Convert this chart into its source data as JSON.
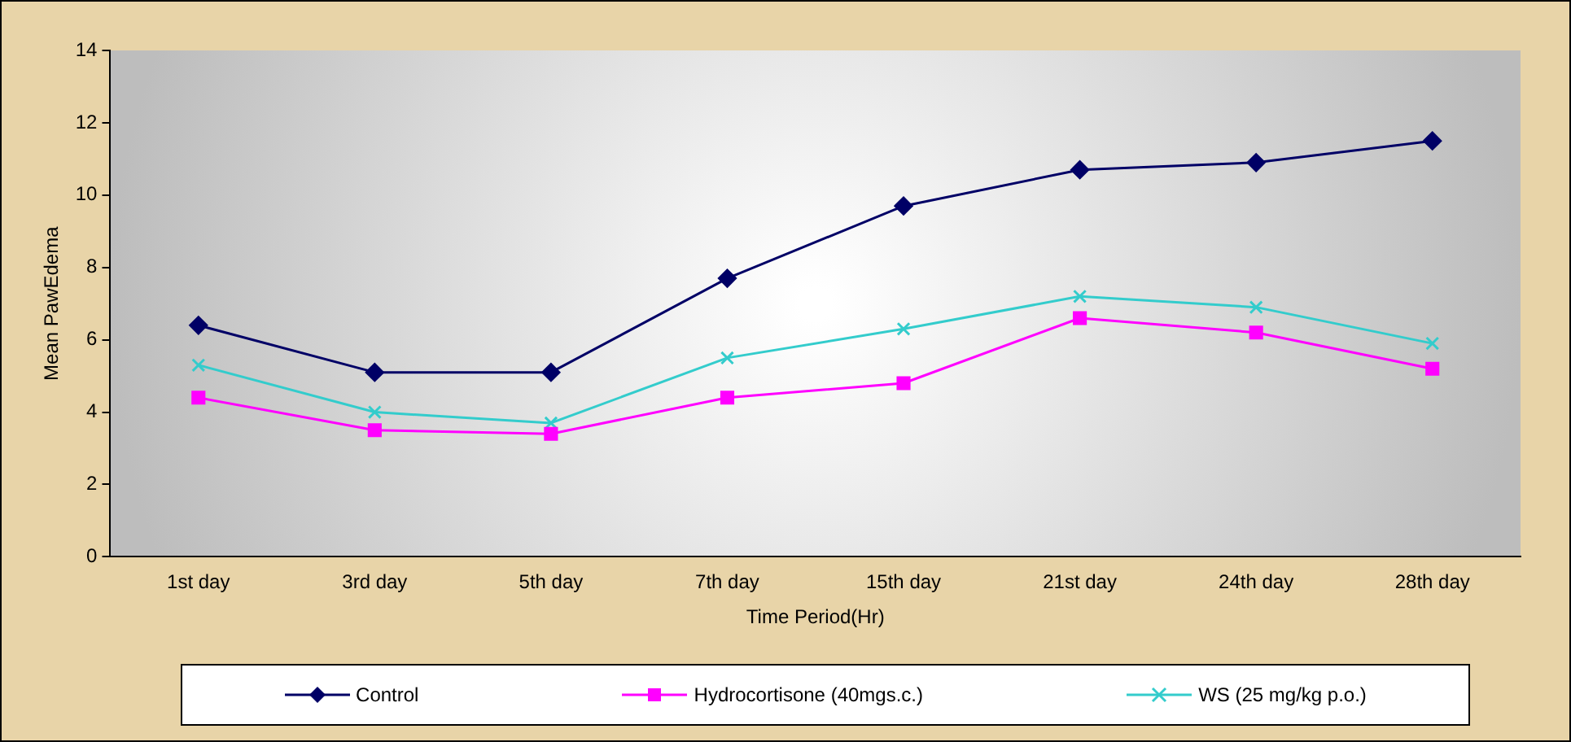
{
  "chart_data": {
    "type": "line",
    "xlabel": "Time Period(Hr)",
    "ylabel": "Mean PawEdema",
    "categories": [
      "1st day",
      "3rd day",
      "5th day",
      "7th day",
      "15th day",
      "21st day",
      "24th day",
      "28th day"
    ],
    "series": [
      {
        "name": "Control",
        "color": "#000066",
        "marker": "diamond",
        "values": [
          6.4,
          5.1,
          5.1,
          7.7,
          9.7,
          10.7,
          10.9,
          11.5
        ]
      },
      {
        "name": "Hydrocortisone (40mgs.c.)",
        "color": "#ff00ff",
        "marker": "square",
        "values": [
          4.4,
          3.5,
          3.4,
          4.4,
          4.8,
          6.6,
          6.2,
          5.2
        ]
      },
      {
        "name": "WS (25 mg/kg p.o.)",
        "color": "#33cccc",
        "marker": "cross",
        "values": [
          5.3,
          4.0,
          3.7,
          5.5,
          6.3,
          7.2,
          6.9,
          5.9
        ]
      }
    ],
    "ylim": [
      0,
      14
    ],
    "yticks": [
      0,
      2,
      4,
      6,
      8,
      10,
      12,
      14
    ],
    "grid": false,
    "legend": "bottom"
  }
}
